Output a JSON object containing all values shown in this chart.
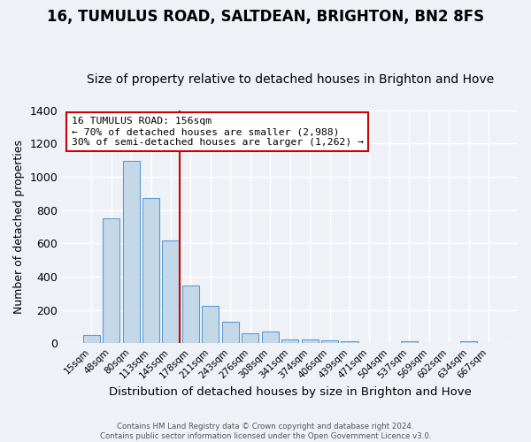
{
  "title": "16, TUMULUS ROAD, SALTDEAN, BRIGHTON, BN2 8FS",
  "subtitle": "Size of property relative to detached houses in Brighton and Hove",
  "xlabel": "Distribution of detached houses by size in Brighton and Hove",
  "ylabel": "Number of detached properties",
  "bar_labels": [
    "15sqm",
    "48sqm",
    "80sqm",
    "113sqm",
    "145sqm",
    "178sqm",
    "211sqm",
    "243sqm",
    "276sqm",
    "308sqm",
    "341sqm",
    "374sqm",
    "406sqm",
    "439sqm",
    "471sqm",
    "504sqm",
    "537sqm",
    "569sqm",
    "602sqm",
    "634sqm",
    "667sqm"
  ],
  "bar_values": [
    50,
    750,
    1095,
    870,
    615,
    345,
    225,
    130,
    60,
    70,
    25,
    25,
    20,
    12,
    0,
    0,
    10,
    0,
    0,
    12,
    0
  ],
  "bar_color": "#c5d8e8",
  "bar_edge_color": "#5b9bd5",
  "vline_color": "#cc0000",
  "ylim": [
    0,
    1400
  ],
  "yticks": [
    0,
    200,
    400,
    600,
    800,
    1000,
    1200,
    1400
  ],
  "annotation_title": "16 TUMULUS ROAD: 156sqm",
  "annotation_line1": "← 70% of detached houses are smaller (2,988)",
  "annotation_line2": "30% of semi-detached houses are larger (1,262) →",
  "annotation_box_color": "#ffffff",
  "annotation_box_edge": "#cc0000",
  "footer1": "Contains HM Land Registry data © Crown copyright and database right 2024.",
  "footer2": "Contains public sector information licensed under the Open Government Licence v3.0.",
  "background_color": "#eef2f7",
  "grid_color": "#ffffff",
  "title_fontsize": 12,
  "subtitle_fontsize": 10
}
